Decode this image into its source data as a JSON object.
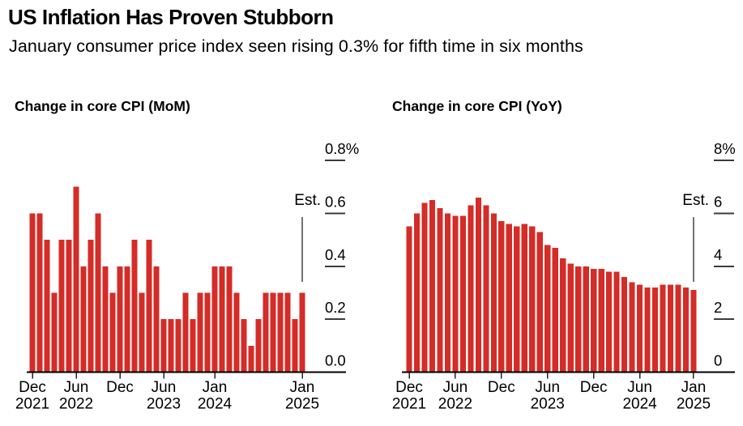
{
  "header": {
    "title": "US Inflation Has Proven Stubborn",
    "subtitle": "January consumer price index seen rising 0.3% for fifth time in six months"
  },
  "colors": {
    "bar": "#d42c27",
    "baseline": "#000000",
    "grid_tick": "#3b3b3b",
    "x_tick": "#222222",
    "est_line": "#444444",
    "text": "#000000"
  },
  "chart_data": [
    {
      "type": "bar",
      "title": "Change in core CPI (MoM)",
      "categories": [
        "Dec 2021",
        "Jan 2022",
        "Feb 2022",
        "Mar 2022",
        "Apr 2022",
        "May 2022",
        "Jun 2022",
        "Jul 2022",
        "Aug 2022",
        "Sep 2022",
        "Oct 2022",
        "Nov 2022",
        "Dec 2022",
        "Jan 2023",
        "Feb 2023",
        "Mar 2023",
        "Apr 2023",
        "May 2023",
        "Jun 2023",
        "Jul 2023",
        "Aug 2023",
        "Sep 2023",
        "Oct 2023",
        "Nov 2023",
        "Dec 2023",
        "Jan 2024",
        "Feb 2024",
        "Mar 2024",
        "Apr 2024",
        "May 2024",
        "Jun 2024",
        "Jul 2024",
        "Aug 2024",
        "Sep 2024",
        "Oct 2024",
        "Nov 2024",
        "Dec 2024",
        "Jan 2025"
      ],
      "values": [
        0.6,
        0.6,
        0.5,
        0.3,
        0.5,
        0.5,
        0.7,
        0.4,
        0.5,
        0.6,
        0.4,
        0.3,
        0.4,
        0.4,
        0.5,
        0.3,
        0.5,
        0.4,
        0.2,
        0.2,
        0.2,
        0.3,
        0.2,
        0.3,
        0.3,
        0.4,
        0.4,
        0.4,
        0.3,
        0.2,
        0.1,
        0.2,
        0.3,
        0.3,
        0.3,
        0.3,
        0.2,
        0.3
      ],
      "ylim": [
        0,
        0.8
      ],
      "yticks": [
        {
          "value": 0.8,
          "label": "0.8%"
        },
        {
          "value": 0.6,
          "label": "0.6"
        },
        {
          "value": 0.4,
          "label": "0.4"
        },
        {
          "value": 0.2,
          "label": "0.2"
        },
        {
          "value": 0.0,
          "label": "0.0"
        }
      ],
      "xticks": [
        {
          "index": 0,
          "lines": [
            "Dec",
            "2021"
          ]
        },
        {
          "index": 6,
          "lines": [
            "Jun",
            "2022"
          ]
        },
        {
          "index": 12,
          "lines": [
            "Dec"
          ]
        },
        {
          "index": 18,
          "lines": [
            "Jun",
            "2023"
          ]
        },
        {
          "index": 25,
          "lines": [
            "Jan",
            "2024"
          ]
        },
        {
          "index": 37,
          "lines": [
            "Jan",
            "2025"
          ]
        }
      ],
      "estimate": {
        "label": "Est.",
        "index": 37,
        "value": 0.3
      },
      "axis_labels_side": "right",
      "grid": false,
      "legend": "none"
    },
    {
      "type": "bar",
      "title": "Change in core CPI (YoY)",
      "categories": [
        "Dec 2021",
        "Jan 2022",
        "Feb 2022",
        "Mar 2022",
        "Apr 2022",
        "May 2022",
        "Jun 2022",
        "Jul 2022",
        "Aug 2022",
        "Sep 2022",
        "Oct 2022",
        "Nov 2022",
        "Dec 2022",
        "Jan 2023",
        "Feb 2023",
        "Mar 2023",
        "Apr 2023",
        "May 2023",
        "Jun 2023",
        "Jul 2023",
        "Aug 2023",
        "Sep 2023",
        "Oct 2023",
        "Nov 2023",
        "Dec 2023",
        "Jan 2024",
        "Feb 2024",
        "Mar 2024",
        "Apr 2024",
        "May 2024",
        "Jun 2024",
        "Jul 2024",
        "Aug 2024",
        "Sep 2024",
        "Oct 2024",
        "Nov 2024",
        "Dec 2024",
        "Jan 2025"
      ],
      "values": [
        5.5,
        6.0,
        6.4,
        6.5,
        6.2,
        6.0,
        5.9,
        5.9,
        6.3,
        6.6,
        6.3,
        6.0,
        5.7,
        5.6,
        5.5,
        5.6,
        5.5,
        5.3,
        4.8,
        4.7,
        4.3,
        4.1,
        4.0,
        4.0,
        3.9,
        3.9,
        3.8,
        3.8,
        3.6,
        3.4,
        3.3,
        3.2,
        3.2,
        3.3,
        3.3,
        3.3,
        3.2,
        3.1
      ],
      "ylim": [
        0,
        8
      ],
      "yticks": [
        {
          "value": 8,
          "label": "8%"
        },
        {
          "value": 6,
          "label": "6"
        },
        {
          "value": 4,
          "label": "4"
        },
        {
          "value": 2,
          "label": "2"
        },
        {
          "value": 0,
          "label": "0"
        }
      ],
      "xticks": [
        {
          "index": 0,
          "lines": [
            "Dec",
            "2021"
          ]
        },
        {
          "index": 6,
          "lines": [
            "Jun",
            "2022"
          ]
        },
        {
          "index": 12,
          "lines": [
            "Dec"
          ]
        },
        {
          "index": 18,
          "lines": [
            "Jun",
            "2023"
          ]
        },
        {
          "index": 24,
          "lines": [
            "Dec"
          ]
        },
        {
          "index": 30,
          "lines": [
            "Jun",
            "2024"
          ]
        },
        {
          "index": 37,
          "lines": [
            "Jan",
            "2025"
          ]
        }
      ],
      "estimate": {
        "label": "Est.",
        "index": 37,
        "value": 3.1
      },
      "axis_labels_side": "right",
      "grid": false,
      "legend": "none"
    }
  ]
}
